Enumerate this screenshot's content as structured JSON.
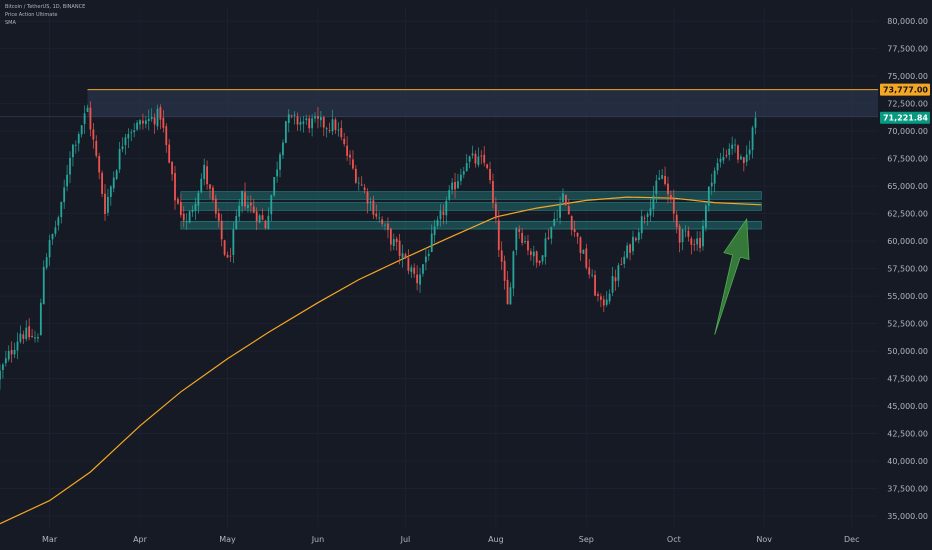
{
  "legend": {
    "symbol": "Bitcoin / TetherUS, 1D, BINANCE",
    "indicator_1": "Price Action Ultimate",
    "indicator_2": "SMA"
  },
  "colors": {
    "background": "#161a25",
    "up": "#26a69a",
    "down": "#ef5350",
    "sma": "#f5a623",
    "resistance_line": "#f5a623",
    "zone": "#2a3448",
    "support_zone": "#1f6f70",
    "arrow": "#3b8a3e",
    "axis_text": "#b2b5be",
    "price_label_orange": "#f5a623",
    "price_label_green": "#089981"
  },
  "chart_data": {
    "type": "candlestick",
    "title": "",
    "y_axis": {
      "ylim": [
        34000,
        81200
      ],
      "ticks": [
        35000,
        37500,
        40000,
        42500,
        45000,
        47500,
        50000,
        52500,
        55000,
        57500,
        60000,
        62500,
        65000,
        67500,
        70000,
        72500,
        75000,
        77500,
        80000
      ],
      "tick_labels": [
        "35,000.00",
        "37,500.00",
        "40,000.00",
        "42,500.00",
        "45,000.00",
        "47,500.00",
        "50,000.00",
        "52,500.00",
        "55,000.00",
        "57,500.00",
        "60,000.00",
        "62,500.00",
        "65,000.00",
        "67,500.00",
        "70,000.00",
        "72,500.00",
        "75,000.00",
        "77,500.00",
        "80,000.00"
      ]
    },
    "x_axis": {
      "start_date": "2024-02-13",
      "end_date": "2024-12-10",
      "months": [
        {
          "label": "Mar",
          "date": "2024-03-01"
        },
        {
          "label": "Apr",
          "date": "2024-04-01"
        },
        {
          "label": "May",
          "date": "2024-05-01"
        },
        {
          "label": "Jun",
          "date": "2024-06-01"
        },
        {
          "label": "Jul",
          "date": "2024-07-01"
        },
        {
          "label": "Aug",
          "date": "2024-08-01"
        },
        {
          "label": "Sep",
          "date": "2024-09-01"
        },
        {
          "label": "Oct",
          "date": "2024-10-01"
        },
        {
          "label": "Nov",
          "date": "2024-11-01"
        },
        {
          "label": "Dec",
          "date": "2024-12-01"
        }
      ]
    },
    "price_labels": [
      {
        "value": 73777,
        "text": "73,777.00",
        "color": "orange"
      },
      {
        "value": 71221.84,
        "text": "71,221.84",
        "color": "green"
      }
    ],
    "resistance_zone": {
      "top": 73777,
      "bottom": 71300,
      "from_date": "2024-03-14"
    },
    "support_zones": [
      {
        "top": 64500,
        "bottom": 63800,
        "from_date": "2024-04-15",
        "to_date": "2024-10-31"
      },
      {
        "top": 63500,
        "bottom": 62800,
        "from_date": "2024-04-15",
        "to_date": "2024-10-31"
      },
      {
        "top": 61800,
        "bottom": 61100,
        "from_date": "2024-04-15",
        "to_date": "2024-10-31"
      }
    ],
    "sma_series": {
      "name": "SMA",
      "points": [
        [
          "2024-02-13",
          34300
        ],
        [
          "2024-03-01",
          36400
        ],
        [
          "2024-03-15",
          39000
        ],
        [
          "2024-04-01",
          43200
        ],
        [
          "2024-04-15",
          46300
        ],
        [
          "2024-05-01",
          49300
        ],
        [
          "2024-05-15",
          51700
        ],
        [
          "2024-06-01",
          54400
        ],
        [
          "2024-06-15",
          56500
        ],
        [
          "2024-07-01",
          58500
        ],
        [
          "2024-07-15",
          60200
        ],
        [
          "2024-08-01",
          62200
        ],
        [
          "2024-08-15",
          63000
        ],
        [
          "2024-09-01",
          63700
        ],
        [
          "2024-09-15",
          64000
        ],
        [
          "2024-10-01",
          63900
        ],
        [
          "2024-10-15",
          63500
        ],
        [
          "2024-10-31",
          63300
        ]
      ]
    },
    "price_path": [
      [
        "2024-02-13",
        48000
      ],
      [
        "2024-02-20",
        51700
      ],
      [
        "2024-02-26",
        51000
      ],
      [
        "2024-02-28",
        58000
      ],
      [
        "2024-03-05",
        63000
      ],
      [
        "2024-03-08",
        68000
      ],
      [
        "2024-03-14",
        72000
      ],
      [
        "2024-03-20",
        63000
      ],
      [
        "2024-03-27",
        70000
      ],
      [
        "2024-04-08",
        71500
      ],
      [
        "2024-04-13",
        64000
      ],
      [
        "2024-04-17",
        61500
      ],
      [
        "2024-04-23",
        66500
      ],
      [
        "2024-05-01",
        58000
      ],
      [
        "2024-05-06",
        64000
      ],
      [
        "2024-05-14",
        61500
      ],
      [
        "2024-05-21",
        71000
      ],
      [
        "2024-06-07",
        70500
      ],
      [
        "2024-06-13",
        66500
      ],
      [
        "2024-06-24",
        61000
      ],
      [
        "2024-07-05",
        56500
      ],
      [
        "2024-07-15",
        63500
      ],
      [
        "2024-07-22",
        67500
      ],
      [
        "2024-07-29",
        67000
      ],
      [
        "2024-08-05",
        54000
      ],
      [
        "2024-08-08",
        61500
      ],
      [
        "2024-08-15",
        58000
      ],
      [
        "2024-08-24",
        64000
      ],
      [
        "2024-09-06",
        54000
      ],
      [
        "2024-09-15",
        59000
      ],
      [
        "2024-09-27",
        66000
      ],
      [
        "2024-10-03",
        60500
      ],
      [
        "2024-10-10",
        60000
      ],
      [
        "2024-10-14",
        66000
      ],
      [
        "2024-10-21",
        69000
      ],
      [
        "2024-10-25",
        66500
      ],
      [
        "2024-10-29",
        71221.84
      ]
    ],
    "arrow": {
      "from": [
        "2024-10-15",
        51500
      ],
      "to": [
        "2024-10-26",
        62000
      ]
    }
  }
}
